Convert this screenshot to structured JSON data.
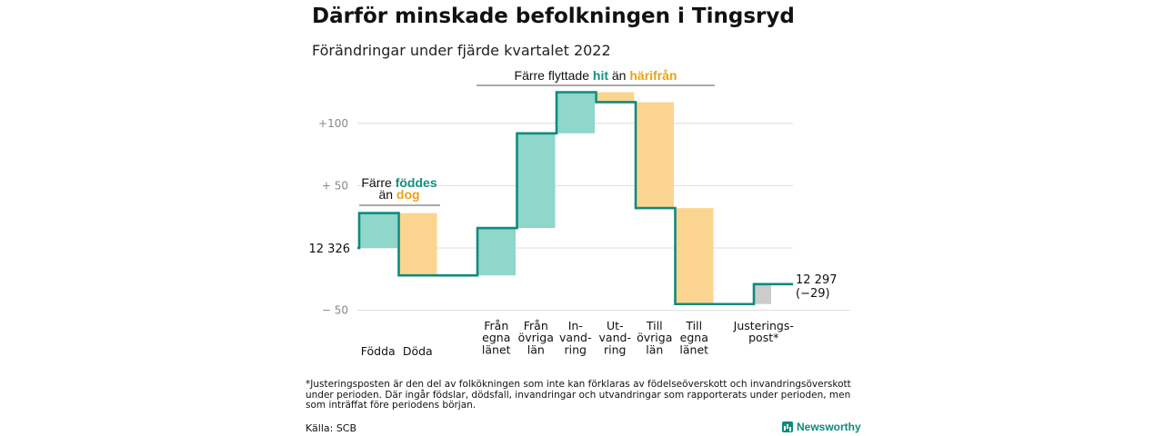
{
  "title": "Därför minskade befolkningen i Tingsryd",
  "subtitle": "Förändringar under fjärde kvartalet 2022",
  "colors": {
    "increase": "#8fd6cb",
    "decrease": "#fbd58f",
    "adjustment": "#cccccc",
    "line": "#0f8a7e",
    "teal_text": "#14927f",
    "orange_text": "#e8a317"
  },
  "chart_data": {
    "type": "waterfall",
    "start_value": 12326,
    "start_label": "12 326",
    "end_label": "12 297",
    "end_change": "(−29)",
    "yticks": [
      {
        "value": 100,
        "label": "+100"
      },
      {
        "value": 50,
        "label": "+ 50"
      },
      {
        "value": -50,
        "label": "− 50"
      }
    ],
    "ylim": [
      -50,
      130
    ],
    "grid": true,
    "steps": [
      {
        "id": "fodda",
        "label": [
          "Födda"
        ],
        "change": 28,
        "kind": "increase"
      },
      {
        "id": "doda",
        "label": [
          "Döda"
        ],
        "change": -50,
        "kind": "decrease"
      },
      {
        "id": "fran-egna-lanet",
        "label": [
          "Från",
          "egna",
          "länet"
        ],
        "change": 38,
        "kind": "increase"
      },
      {
        "id": "fran-ovriga-lan",
        "label": [
          "Från",
          "övriga",
          "län"
        ],
        "change": 76,
        "kind": "increase"
      },
      {
        "id": "invandring",
        "label": [
          "In-",
          "vand-",
          "ring"
        ],
        "change": 33,
        "kind": "increase"
      },
      {
        "id": "utvandring",
        "label": [
          "Ut-",
          "vand-",
          "ring"
        ],
        "change": -8,
        "kind": "decrease"
      },
      {
        "id": "till-ovriga-lan",
        "label": [
          "Till",
          "övriga",
          "län"
        ],
        "change": -85,
        "kind": "decrease"
      },
      {
        "id": "till-egna-lanet",
        "label": [
          "Till",
          "egna",
          "länet"
        ],
        "change": -77,
        "kind": "decrease"
      },
      {
        "id": "justeringspost",
        "label": [
          "Justerings-",
          "post*"
        ],
        "change": 16,
        "kind": "adjustment"
      }
    ],
    "annotations": [
      {
        "id": "births",
        "lines": [
          [
            {
              "text": "Färre ",
              "style": "plain"
            },
            {
              "text": "föddes",
              "style": "teal"
            }
          ],
          [
            {
              "text": "än ",
              "style": "plain"
            },
            {
              "text": "dog",
              "style": "orange"
            }
          ]
        ],
        "applies_to": [
          "fodda",
          "doda"
        ]
      },
      {
        "id": "migration",
        "lines": [
          [
            {
              "text": "Färre flyttade ",
              "style": "plain"
            },
            {
              "text": "hit",
              "style": "teal"
            },
            {
              "text": " än ",
              "style": "plain"
            },
            {
              "text": "härifrån",
              "style": "orange"
            }
          ]
        ],
        "applies_to": [
          "fran-egna-lanet",
          "till-egna-lanet"
        ]
      }
    ]
  },
  "footnote": "*Justeringsposten är den del av folkökningen som inte kan förklaras av födelseöverskott och invandringsöverskott under perioden. Där ingår födslar, dödsfall, invandringar och utvandringar som rapporterats under perioden, men som inträffat före periodens början.",
  "source": "Källa: SCB",
  "brand": "Newsworthy"
}
